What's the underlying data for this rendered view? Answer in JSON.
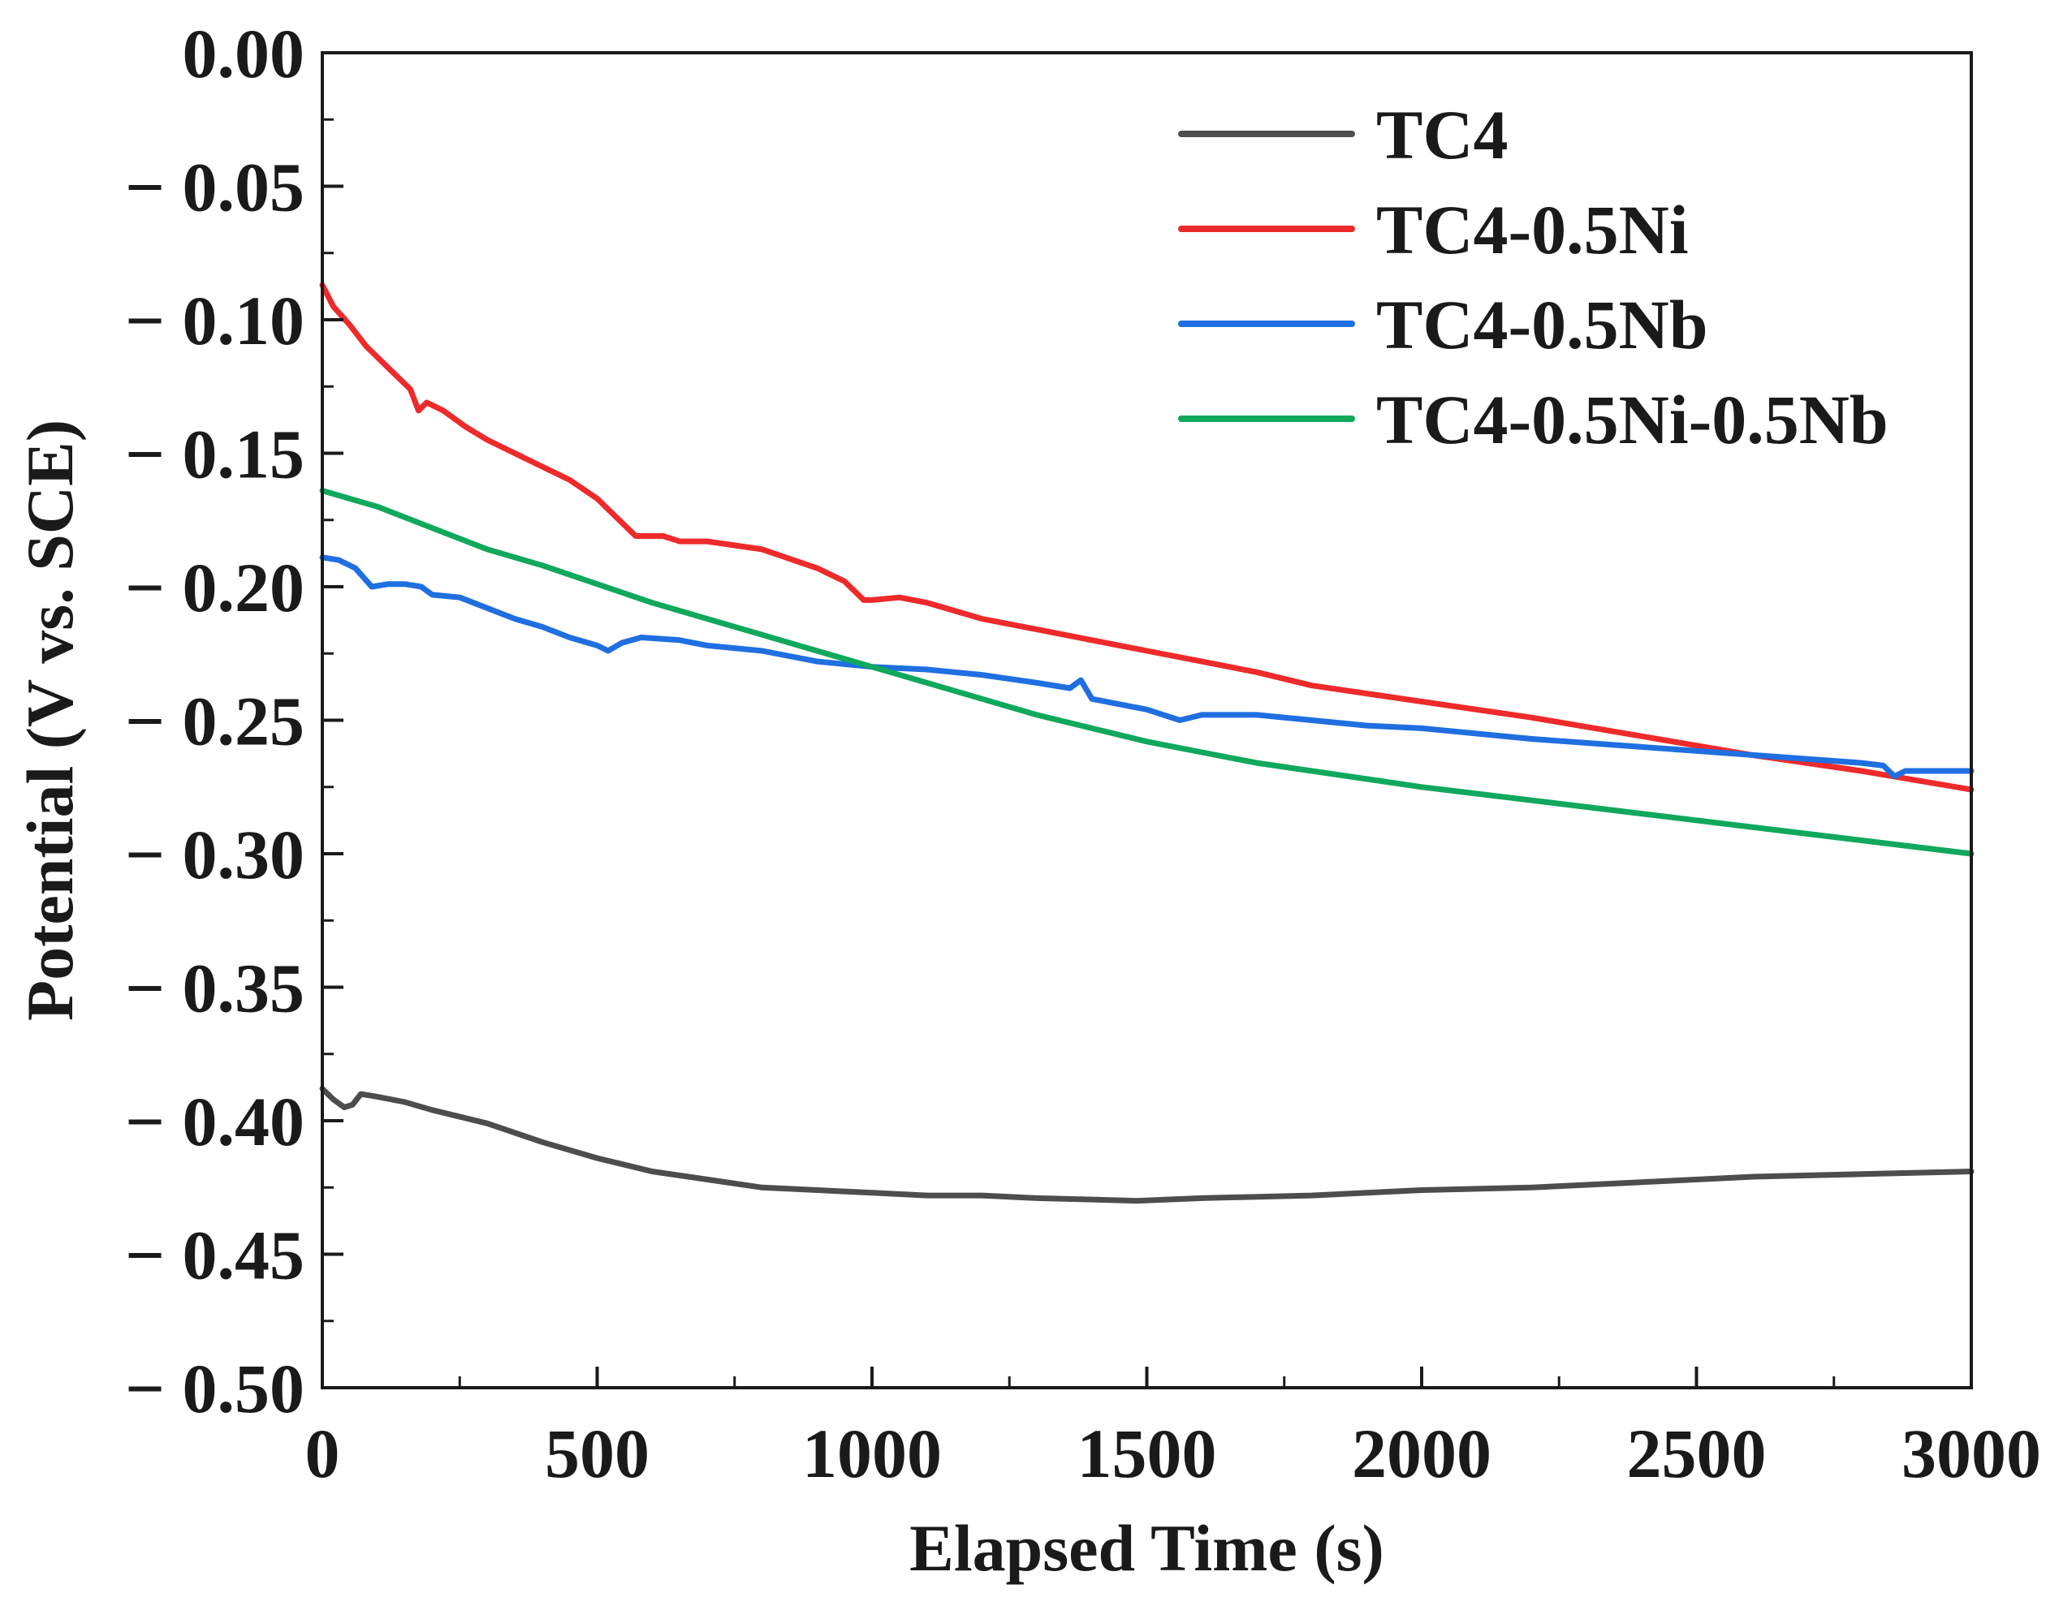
{
  "chart_data": {
    "type": "line",
    "title": "",
    "xlabel": "Elapsed Time (s)",
    "ylabel": "Potential (V vs. SCE)",
    "xlim": [
      0,
      3000
    ],
    "ylim": [
      -0.5,
      0.0
    ],
    "grid": false,
    "legend_position": "top-right",
    "x_ticks": [
      0,
      500,
      1000,
      1500,
      2000,
      2500,
      3000
    ],
    "x_tick_labels": [
      "0",
      "500",
      "1000",
      "1500",
      "2000",
      "2500",
      "3000"
    ],
    "y_ticks": [
      0.0,
      -0.05,
      -0.1,
      -0.15,
      -0.2,
      -0.25,
      -0.3,
      -0.35,
      -0.4,
      -0.45,
      -0.5
    ],
    "y_tick_labels": [
      "0.00",
      "− 0.05",
      "− 0.10",
      "− 0.15",
      "− 0.20",
      "− 0.25",
      "− 0.30",
      "− 0.35",
      "− 0.40",
      "− 0.45",
      "− 0.50"
    ],
    "series": [
      {
        "name": "TC4",
        "color": "#4d4d4d",
        "points": [
          [
            0,
            -0.388
          ],
          [
            20,
            -0.392
          ],
          [
            40,
            -0.395
          ],
          [
            55,
            -0.394
          ],
          [
            70,
            -0.39
          ],
          [
            100,
            -0.391
          ],
          [
            150,
            -0.393
          ],
          [
            200,
            -0.396
          ],
          [
            300,
            -0.401
          ],
          [
            400,
            -0.408
          ],
          [
            500,
            -0.414
          ],
          [
            600,
            -0.419
          ],
          [
            700,
            -0.422
          ],
          [
            800,
            -0.425
          ],
          [
            900,
            -0.426
          ],
          [
            1000,
            -0.427
          ],
          [
            1100,
            -0.428
          ],
          [
            1200,
            -0.428
          ],
          [
            1300,
            -0.429
          ],
          [
            1400,
            -0.4295
          ],
          [
            1480,
            -0.43
          ],
          [
            1600,
            -0.429
          ],
          [
            1800,
            -0.428
          ],
          [
            2000,
            -0.426
          ],
          [
            2200,
            -0.425
          ],
          [
            2400,
            -0.423
          ],
          [
            2600,
            -0.421
          ],
          [
            2800,
            -0.42
          ],
          [
            3000,
            -0.419
          ]
        ]
      },
      {
        "name": "TC4-0.5Ni",
        "color": "#ee2a2a",
        "points": [
          [
            0,
            -0.087
          ],
          [
            20,
            -0.095
          ],
          [
            50,
            -0.102
          ],
          [
            80,
            -0.11
          ],
          [
            120,
            -0.118
          ],
          [
            160,
            -0.126
          ],
          [
            175,
            -0.134
          ],
          [
            190,
            -0.131
          ],
          [
            220,
            -0.134
          ],
          [
            260,
            -0.14
          ],
          [
            300,
            -0.145
          ],
          [
            350,
            -0.15
          ],
          [
            400,
            -0.155
          ],
          [
            450,
            -0.16
          ],
          [
            500,
            -0.167
          ],
          [
            540,
            -0.175
          ],
          [
            570,
            -0.181
          ],
          [
            620,
            -0.181
          ],
          [
            650,
            -0.183
          ],
          [
            700,
            -0.183
          ],
          [
            800,
            -0.186
          ],
          [
            900,
            -0.193
          ],
          [
            950,
            -0.198
          ],
          [
            985,
            -0.205
          ],
          [
            1000,
            -0.205
          ],
          [
            1050,
            -0.204
          ],
          [
            1100,
            -0.206
          ],
          [
            1200,
            -0.212
          ],
          [
            1300,
            -0.216
          ],
          [
            1400,
            -0.22
          ],
          [
            1500,
            -0.224
          ],
          [
            1600,
            -0.228
          ],
          [
            1700,
            -0.232
          ],
          [
            1800,
            -0.237
          ],
          [
            1900,
            -0.24
          ],
          [
            2000,
            -0.243
          ],
          [
            2200,
            -0.249
          ],
          [
            2400,
            -0.256
          ],
          [
            2600,
            -0.263
          ],
          [
            2800,
            -0.269
          ],
          [
            3000,
            -0.276
          ]
        ]
      },
      {
        "name": "TC4-0.5Nb",
        "color": "#1f6fe0",
        "points": [
          [
            0,
            -0.189
          ],
          [
            30,
            -0.19
          ],
          [
            60,
            -0.193
          ],
          [
            90,
            -0.2
          ],
          [
            120,
            -0.199
          ],
          [
            150,
            -0.199
          ],
          [
            180,
            -0.2
          ],
          [
            200,
            -0.203
          ],
          [
            250,
            -0.204
          ],
          [
            300,
            -0.208
          ],
          [
            350,
            -0.212
          ],
          [
            400,
            -0.215
          ],
          [
            450,
            -0.219
          ],
          [
            500,
            -0.222
          ],
          [
            520,
            -0.224
          ],
          [
            545,
            -0.221
          ],
          [
            580,
            -0.219
          ],
          [
            650,
            -0.22
          ],
          [
            700,
            -0.222
          ],
          [
            800,
            -0.224
          ],
          [
            900,
            -0.228
          ],
          [
            1000,
            -0.23
          ],
          [
            1100,
            -0.231
          ],
          [
            1200,
            -0.233
          ],
          [
            1300,
            -0.236
          ],
          [
            1360,
            -0.238
          ],
          [
            1380,
            -0.235
          ],
          [
            1400,
            -0.242
          ],
          [
            1450,
            -0.244
          ],
          [
            1500,
            -0.246
          ],
          [
            1560,
            -0.25
          ],
          [
            1600,
            -0.248
          ],
          [
            1700,
            -0.248
          ],
          [
            1800,
            -0.25
          ],
          [
            1900,
            -0.252
          ],
          [
            2000,
            -0.253
          ],
          [
            2200,
            -0.257
          ],
          [
            2400,
            -0.26
          ],
          [
            2600,
            -0.263
          ],
          [
            2800,
            -0.266
          ],
          [
            2840,
            -0.267
          ],
          [
            2860,
            -0.271
          ],
          [
            2880,
            -0.269
          ],
          [
            2950,
            -0.269
          ],
          [
            3000,
            -0.269
          ]
        ]
      },
      {
        "name": "TC4-0.5Ni-0.5Nb",
        "color": "#10a85c",
        "points": [
          [
            0,
            -0.164
          ],
          [
            100,
            -0.17
          ],
          [
            200,
            -0.178
          ],
          [
            300,
            -0.186
          ],
          [
            400,
            -0.192
          ],
          [
            500,
            -0.199
          ],
          [
            600,
            -0.206
          ],
          [
            700,
            -0.212
          ],
          [
            800,
            -0.218
          ],
          [
            900,
            -0.224
          ],
          [
            1000,
            -0.23
          ],
          [
            1100,
            -0.236
          ],
          [
            1200,
            -0.242
          ],
          [
            1300,
            -0.248
          ],
          [
            1400,
            -0.253
          ],
          [
            1500,
            -0.258
          ],
          [
            1600,
            -0.262
          ],
          [
            1700,
            -0.266
          ],
          [
            1800,
            -0.269
          ],
          [
            1900,
            -0.272
          ],
          [
            2000,
            -0.275
          ],
          [
            2200,
            -0.28
          ],
          [
            2400,
            -0.285
          ],
          [
            2600,
            -0.29
          ],
          [
            2800,
            -0.295
          ],
          [
            3000,
            -0.3
          ]
        ]
      }
    ]
  }
}
